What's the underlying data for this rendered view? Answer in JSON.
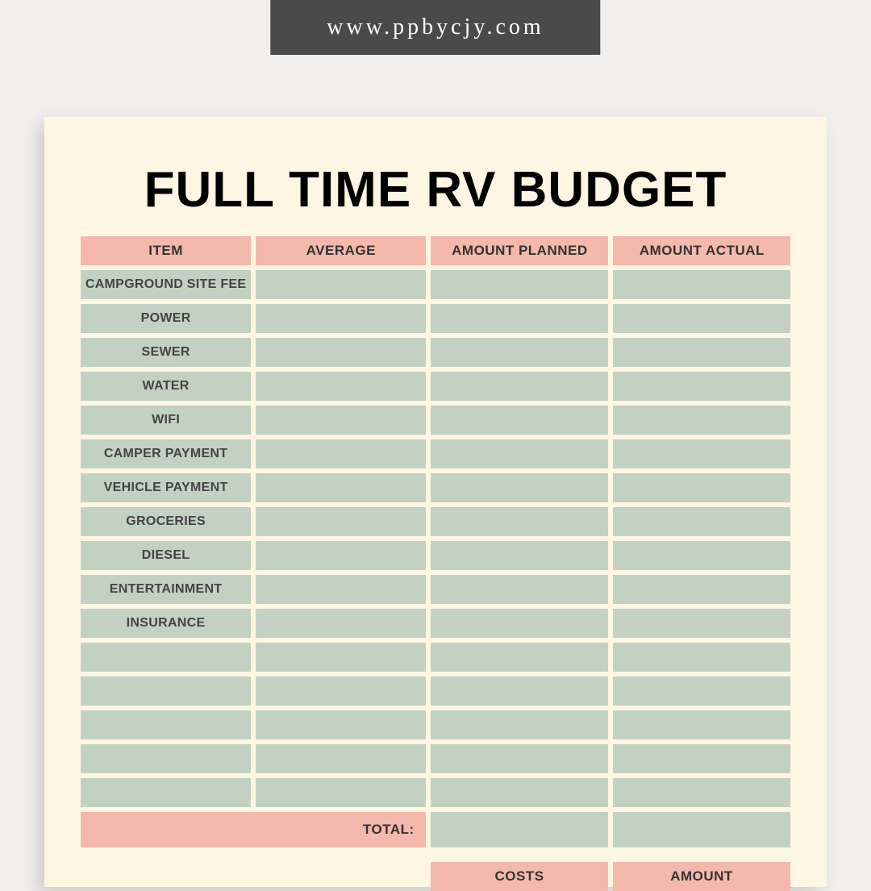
{
  "banner": {
    "url": "www.ppbycjy.com"
  },
  "title": "FULL TIME RV BUDGET",
  "colors": {
    "page_bg": "#fdf6e3",
    "header_cell": "#f5b8ac",
    "data_cell": "#c3d1c3",
    "banner_bg": "#4a4a4a",
    "canvas_bg": "#f0efed",
    "text_dark": "#333333"
  },
  "table": {
    "columns": [
      "ITEM",
      "AVERAGE",
      "AMOUNT PLANNED",
      "AMOUNT ACTUAL"
    ],
    "rows": [
      {
        "item": "CAMPGROUND SITE FEE",
        "average": "",
        "planned": "",
        "actual": ""
      },
      {
        "item": "POWER",
        "average": "",
        "planned": "",
        "actual": ""
      },
      {
        "item": "SEWER",
        "average": "",
        "planned": "",
        "actual": ""
      },
      {
        "item": "WATER",
        "average": "",
        "planned": "",
        "actual": ""
      },
      {
        "item": "WIFI",
        "average": "",
        "planned": "",
        "actual": ""
      },
      {
        "item": "CAMPER PAYMENT",
        "average": "",
        "planned": "",
        "actual": ""
      },
      {
        "item": "VEHICLE PAYMENT",
        "average": "",
        "planned": "",
        "actual": ""
      },
      {
        "item": "GROCERIES",
        "average": "",
        "planned": "",
        "actual": ""
      },
      {
        "item": "DIESEL",
        "average": "",
        "planned": "",
        "actual": ""
      },
      {
        "item": "ENTERTAINMENT",
        "average": "",
        "planned": "",
        "actual": ""
      },
      {
        "item": "INSURANCE",
        "average": "",
        "planned": "",
        "actual": ""
      },
      {
        "item": "",
        "average": "",
        "planned": "",
        "actual": ""
      },
      {
        "item": "",
        "average": "",
        "planned": "",
        "actual": ""
      },
      {
        "item": "",
        "average": "",
        "planned": "",
        "actual": ""
      },
      {
        "item": "",
        "average": "",
        "planned": "",
        "actual": ""
      },
      {
        "item": "",
        "average": "",
        "planned": "",
        "actual": ""
      }
    ],
    "total_label": "TOTAL:",
    "total_planned": "",
    "total_actual": ""
  },
  "subheader": {
    "col1": "COSTS",
    "col2": "AMOUNT"
  }
}
